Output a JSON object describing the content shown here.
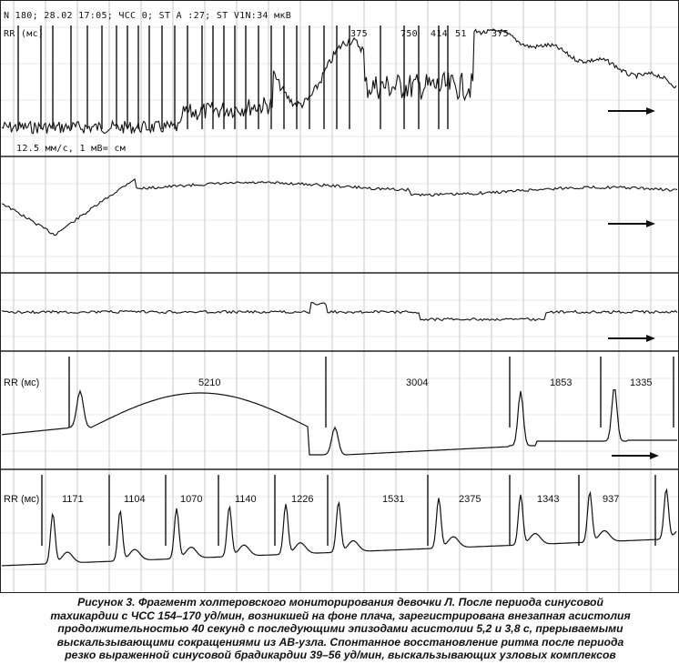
{
  "figure": {
    "header_line1": "N 180; 28.02 17:05; ЧСС 0; ST A :27; ST V1N:34 мкВ",
    "header_line2": "RR (мс)",
    "rr_labels": [
      "RR (мс)",
      "RR (мс)"
    ],
    "rr_strip4": [
      "5210",
      "3004",
      "1853",
      "1335"
    ],
    "rr_strip5": [
      "1171",
      "1104",
      "1070",
      "1140",
      "1226",
      "1531",
      "2375",
      "1343",
      "937"
    ],
    "speed_label": "12.5 мм/с, 1 мВ= см",
    "header_rr_values": [
      "375",
      "750",
      "414",
      "51",
      "375"
    ]
  },
  "caption": {
    "lines": [
      "Рисунок 3. Фрагмент холтеровского мониторирования девочки Л. После периода синусовой",
      "тахикардии с ЧСС 154–170 уд/мин, возникшей на фоне плача, зарегистрирована внезапная асистолия",
      "продолжительностью 40 секунд с последующими эпизодами асистолии 5,2 и 3,8 с, прерываемыми",
      "выскальзывающими сокращениями из АВ-узла. Спонтанное восстановление ритма после периода",
      "резко выраженной синусовой брадикардии 39–56 уд/мин, выскальзывающих узловых комплексов"
    ]
  }
}
